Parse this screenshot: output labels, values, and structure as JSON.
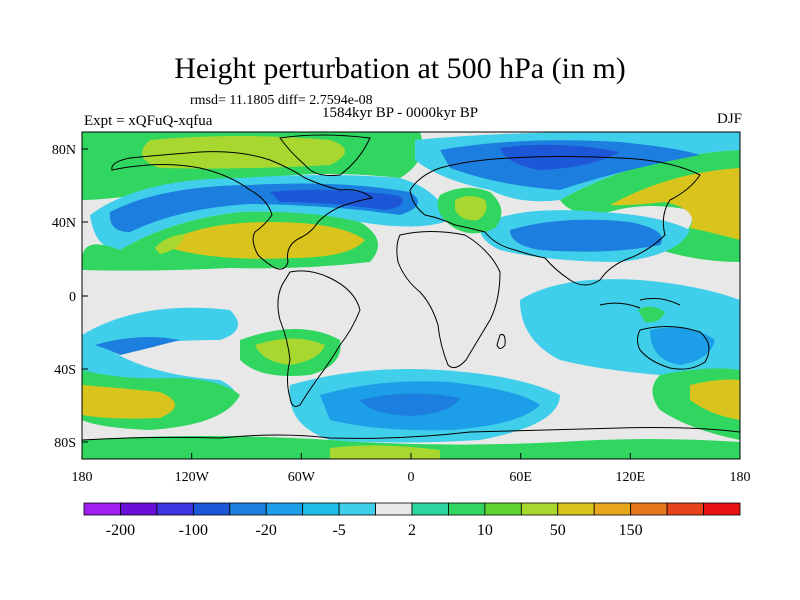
{
  "title": "Height perturbation at 500 hPa (in m)",
  "stats": "rmsd= 11.1805 diff= 2.7594e-08",
  "experiment": "Expt = xQFuQ-xqfua",
  "period": "1584kyr BP - 0000kyr BP",
  "season": "DJF",
  "lat_ticks": [
    "80N",
    "40N",
    "0",
    "40S",
    "80S"
  ],
  "lon_ticks": [
    "180",
    "120W",
    "60W",
    "0",
    "60E",
    "120E",
    "180"
  ],
  "colorbar": {
    "colors": [
      "#a020f0",
      "#6a0fd8",
      "#3d35e0",
      "#1e56d8",
      "#1c7ede",
      "#1c9ee8",
      "#20bde8",
      "#40cfea",
      "#e8e8e8",
      "#2cd6a0",
      "#30d660",
      "#60d430",
      "#a8d830",
      "#d8c41c",
      "#e8a61c",
      "#e8781c",
      "#e8441c",
      "#e81010"
    ],
    "labels": [
      "-200",
      "-100",
      "-20",
      "-5",
      "2",
      "10",
      "50",
      "150"
    ]
  }
}
